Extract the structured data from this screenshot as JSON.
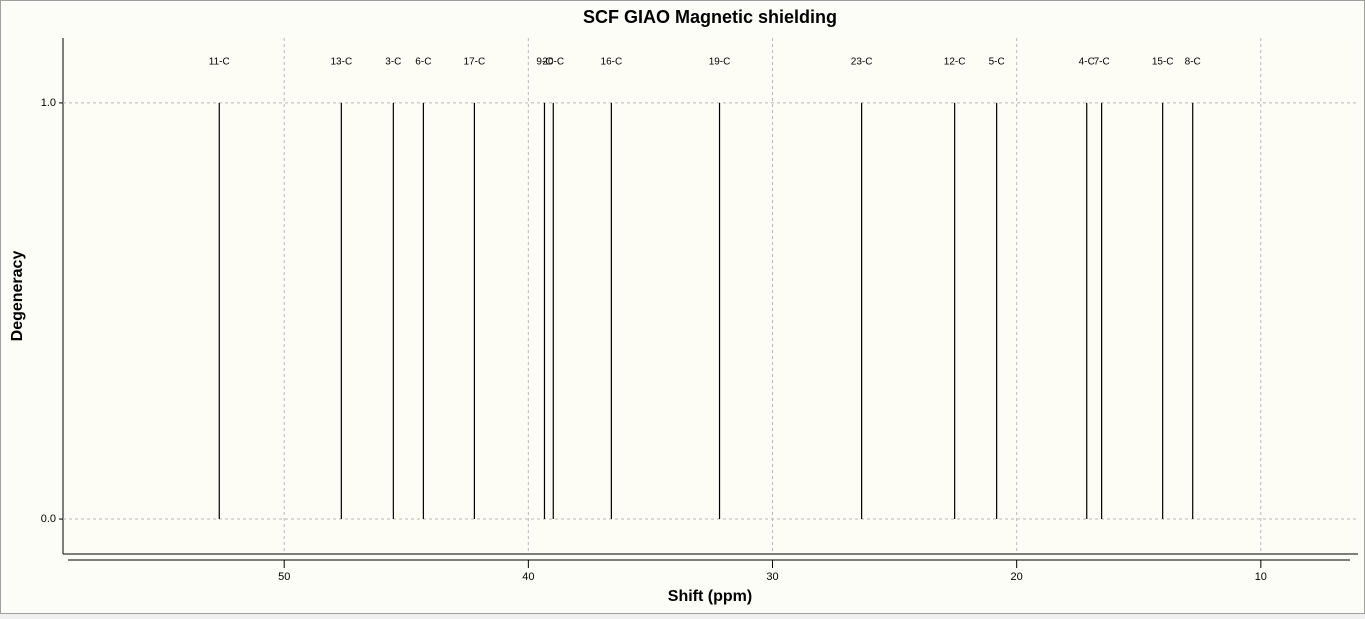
{
  "chart_data": {
    "type": "stick",
    "title": "SCF GIAO Magnetic shielding",
    "x_label": "Shift (ppm)",
    "y_label": "Degeneracy",
    "labels": [
      "11-C",
      "13-C",
      "3-C",
      "6-C",
      "17-C",
      "9-C",
      "20-C",
      "16-C",
      "19-C",
      "23-C",
      "12-C",
      "5-C",
      "4-C",
      "7-C",
      "15-C",
      "8-C"
    ],
    "x": [
      52.66,
      47.66,
      45.53,
      44.3,
      42.21,
      39.34,
      38.98,
      36.6,
      32.17,
      26.35,
      22.54,
      20.82,
      17.13,
      16.52,
      14.02,
      12.79
    ],
    "values": [
      1,
      1,
      1,
      1,
      1,
      1,
      1,
      1,
      1,
      1,
      1,
      1,
      1,
      1,
      1,
      1
    ],
    "color": "#000000",
    "xlim": [
      59.06,
      6.02
    ],
    "xticks": [
      50,
      40,
      30,
      20,
      10
    ],
    "ylim": [
      -0.084,
      1.156
    ],
    "yticks": [
      {
        "value": 0,
        "label": "0.0"
      },
      {
        "value": 1,
        "label": "1.0"
      }
    ],
    "grid": true
  }
}
